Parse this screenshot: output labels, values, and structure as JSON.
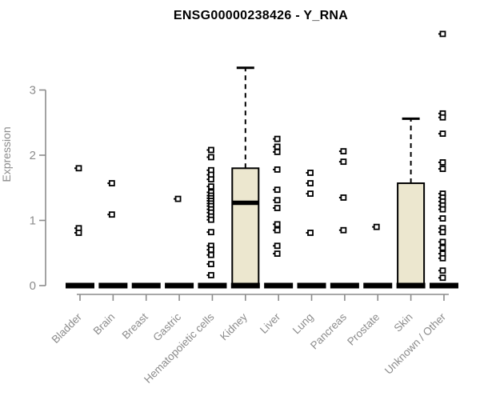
{
  "colors": {
    "title": "#000000",
    "axis": "#8c8c8c",
    "box_fill": "#ece7cf",
    "box_stroke": "#000000",
    "point_fill": "#ffffff",
    "point_stroke": "#000000"
  },
  "chart_data": {
    "type": "boxplot",
    "title": "ENSG00000238426 - Y_RNA",
    "xlabel": "",
    "ylabel": "Expression",
    "yticks": [
      0,
      1,
      2,
      3
    ],
    "ylim": [
      0,
      3.95
    ],
    "grid": false,
    "legend": "none",
    "categories": [
      "Bladder",
      "Brain",
      "Breast",
      "Gastric",
      "Hematopoietic cells",
      "Kidney",
      "Liver",
      "Lung",
      "Pancreas",
      "Prostate",
      "Skin",
      "Unknown / Other"
    ],
    "boxes": [
      {
        "category": "Bladder",
        "q1": 0,
        "median": 0,
        "q3": 0,
        "whisker_low": 0,
        "whisker_high": 0,
        "points": [
          1.8,
          0.88,
          0.81
        ]
      },
      {
        "category": "Brain",
        "q1": 0,
        "median": 0,
        "q3": 0,
        "whisker_low": 0,
        "whisker_high": 0,
        "points": [
          1.57,
          1.09
        ]
      },
      {
        "category": "Breast",
        "q1": 0,
        "median": 0,
        "q3": 0,
        "whisker_low": 0,
        "whisker_high": 0,
        "points": []
      },
      {
        "category": "Gastric",
        "q1": 0,
        "median": 0,
        "q3": 0,
        "whisker_low": 0,
        "whisker_high": 0,
        "points": [
          1.33
        ]
      },
      {
        "category": "Hematopoietic cells",
        "q1": 0,
        "median": 0,
        "q3": 0,
        "whisker_low": 0,
        "whisker_high": 0,
        "points": [
          2.08,
          1.97,
          1.77,
          1.7,
          1.63,
          1.52,
          1.43,
          1.38,
          1.34,
          1.3,
          1.26,
          1.22,
          1.17,
          1.12,
          1.06,
          1.01,
          0.82,
          0.61,
          0.55,
          0.47,
          0.33,
          0.16
        ]
      },
      {
        "category": "Kidney",
        "q1": 0,
        "median": 1.27,
        "q3": 1.8,
        "whisker_low": 0,
        "whisker_high": 3.34,
        "points": []
      },
      {
        "category": "Liver",
        "q1": 0,
        "median": 0,
        "q3": 0,
        "whisker_low": 0,
        "whisker_high": 0,
        "points": [
          2.25,
          2.13,
          2.05,
          1.78,
          1.47,
          1.31,
          1.19,
          0.94,
          0.85,
          0.61,
          0.49
        ]
      },
      {
        "category": "Lung",
        "q1": 0,
        "median": 0,
        "q3": 0,
        "whisker_low": 0,
        "whisker_high": 0,
        "points": [
          1.73,
          1.57,
          1.41,
          0.81
        ]
      },
      {
        "category": "Pancreas",
        "q1": 0,
        "median": 0,
        "q3": 0,
        "whisker_low": 0,
        "whisker_high": 0,
        "points": [
          2.06,
          1.9,
          1.35,
          0.85
        ]
      },
      {
        "category": "Prostate",
        "q1": 0,
        "median": 0,
        "q3": 0,
        "whisker_low": 0,
        "whisker_high": 0,
        "points": [
          0.9
        ]
      },
      {
        "category": "Skin",
        "q1": 0,
        "median": 0,
        "q3": 1.57,
        "whisker_low": 0,
        "whisker_high": 2.56,
        "points": []
      },
      {
        "category": "Unknown / Other",
        "q1": 0,
        "median": 0,
        "q3": 0,
        "whisker_low": 0,
        "whisker_high": 0,
        "points": [
          3.86,
          2.64,
          2.58,
          2.33,
          1.89,
          1.79,
          1.41,
          1.35,
          1.29,
          1.23,
          1.17,
          1.03,
          0.88,
          0.82,
          0.67,
          0.58,
          0.49,
          0.42,
          0.23,
          0.12
        ]
      }
    ]
  }
}
